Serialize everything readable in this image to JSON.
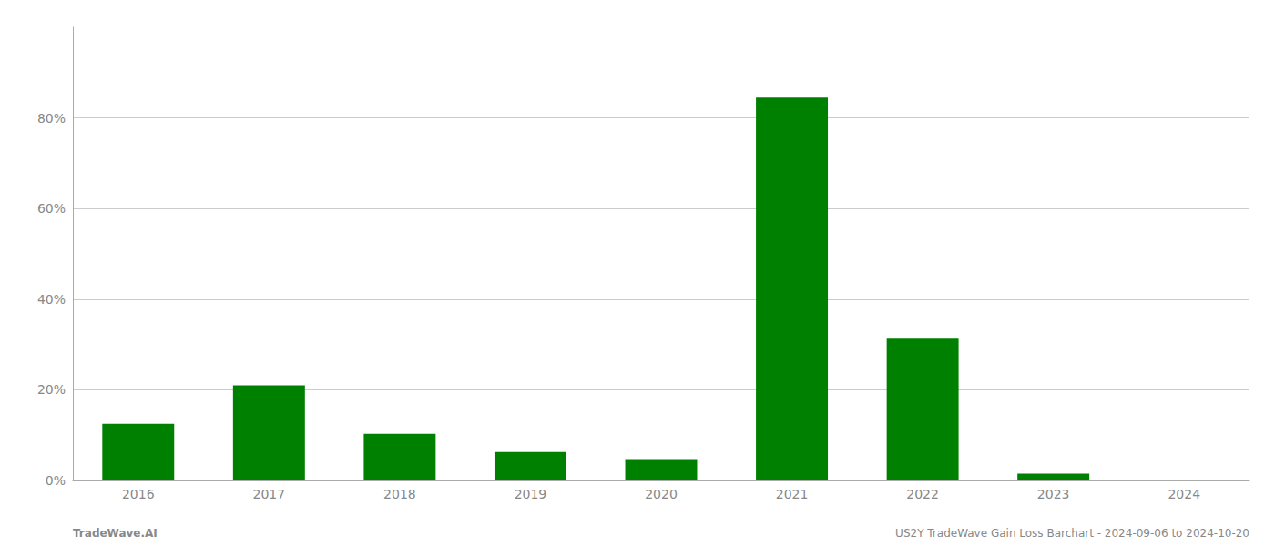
{
  "chart_data": {
    "type": "bar",
    "categories": [
      "2016",
      "2017",
      "2018",
      "2019",
      "2020",
      "2021",
      "2022",
      "2023",
      "2024"
    ],
    "values": [
      0.125,
      0.21,
      0.103,
      0.063,
      0.047,
      0.845,
      0.315,
      0.015,
      0.002
    ],
    "color": "#008000",
    "ylim": [
      0,
      1.0
    ],
    "yticks": [
      {
        "value": 0.0,
        "label": "0%"
      },
      {
        "value": 0.2,
        "label": "20%"
      },
      {
        "value": 0.4,
        "label": "40%"
      },
      {
        "value": 0.6,
        "label": "60%"
      },
      {
        "value": 0.8,
        "label": "80%"
      }
    ],
    "grid": true,
    "annotations": [
      "TradeWave.AI",
      "US2Y TradeWave Gain Loss Barchart - 2024-09-06 to 2024-10-20"
    ]
  }
}
